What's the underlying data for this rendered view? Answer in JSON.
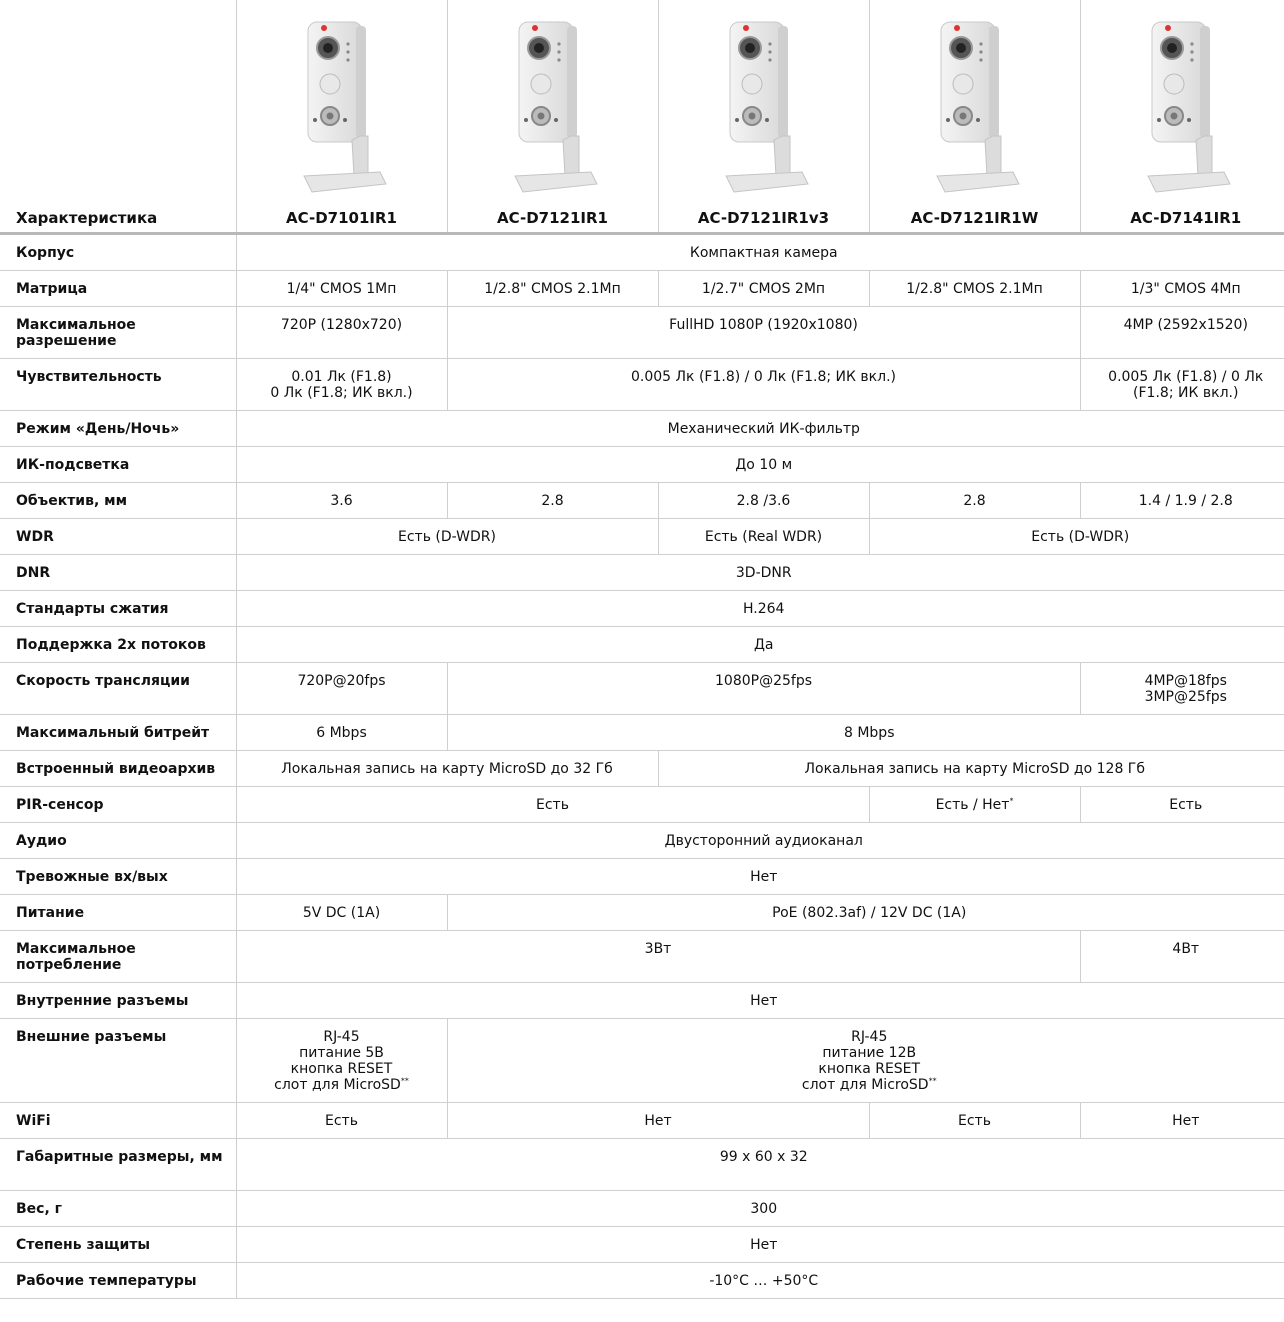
{
  "header": {
    "spec_label": "Характеристика",
    "models": [
      "AC-D7101IR1",
      "AC-D7121IR1",
      "AC-D7121IR1v3",
      "AC-D7121IR1W",
      "AC-D7141IR1"
    ],
    "camera_image_icon": "compact-cube-camera-photo"
  },
  "rows": [
    {
      "label": "Корпус",
      "cells": [
        {
          "text": "Компактная камера",
          "span": 5
        }
      ]
    },
    {
      "label": "Матрица",
      "cells": [
        {
          "text": "1/4\" CMOS 1Мп",
          "span": 1
        },
        {
          "text": "1/2.8\" CMOS 2.1Мп",
          "span": 1
        },
        {
          "text": "1/2.7\" CMOS 2Мп",
          "span": 1
        },
        {
          "text": "1/2.8\" CMOS 2.1Мп",
          "span": 1
        },
        {
          "text": "1/3\" CMOS 4Мп",
          "span": 1
        }
      ]
    },
    {
      "label": "Максимальное разрешение",
      "cells": [
        {
          "text": "720P (1280x720)",
          "span": 1
        },
        {
          "text": "FullHD 1080P (1920x1080)",
          "span": 3
        },
        {
          "text": "4MP (2592x1520)",
          "span": 1
        }
      ]
    },
    {
      "label": "Чувствительность",
      "cells": [
        {
          "text": "0.01 Лк (F1.8)\n0 Лк (F1.8; ИК вкл.)",
          "span": 1
        },
        {
          "text": "0.005 Лк (F1.8) / 0 Лк (F1.8; ИК вкл.)",
          "span": 3
        },
        {
          "text": "0.005 Лк (F1.8) / 0 Лк\n(F1.8; ИК вкл.)",
          "span": 1
        }
      ]
    },
    {
      "label": "Режим «День/Ночь»",
      "cells": [
        {
          "text": "Механический ИК-фильтр",
          "span": 5
        }
      ]
    },
    {
      "label": "ИК-подсветка",
      "cells": [
        {
          "text": "До 10 м",
          "span": 5
        }
      ]
    },
    {
      "label": "Объектив, мм",
      "cells": [
        {
          "text": "3.6",
          "span": 1
        },
        {
          "text": "2.8",
          "span": 1
        },
        {
          "text": "2.8 /3.6",
          "span": 1
        },
        {
          "text": "2.8",
          "span": 1
        },
        {
          "text": "1.4 / 1.9 / 2.8",
          "span": 1
        }
      ]
    },
    {
      "label": "WDR",
      "cells": [
        {
          "text": "Есть (D-WDR)",
          "span": 2
        },
        {
          "text": "Есть (Real WDR)",
          "span": 1
        },
        {
          "text": "Есть (D-WDR)",
          "span": 2
        }
      ]
    },
    {
      "label": "DNR",
      "cells": [
        {
          "text": "3D-DNR",
          "span": 5
        }
      ]
    },
    {
      "label": "Стандарты сжатия",
      "cells": [
        {
          "text": "H.264",
          "span": 5
        }
      ]
    },
    {
      "label": "Поддержка 2х потоков",
      "cells": [
        {
          "text": "Да",
          "span": 5
        }
      ]
    },
    {
      "label": "Скорость трансляции",
      "cells": [
        {
          "text": "720P@20fps",
          "span": 1
        },
        {
          "text": "1080P@25fps",
          "span": 3
        },
        {
          "text": "4MP@18fps\n3MP@25fps",
          "span": 1
        }
      ]
    },
    {
      "label": "Максимальный битрейт",
      "cells": [
        {
          "text": "6 Mbps",
          "span": 1
        },
        {
          "text": "8 Mbps",
          "span": 4
        }
      ]
    },
    {
      "label": "Встроенный видеоархив",
      "cells": [
        {
          "text": "Локальная запись на карту MicroSD до 32 Гб",
          "span": 2
        },
        {
          "text": "Локальная запись на карту MicroSD до 128 Гб",
          "span": 3
        }
      ]
    },
    {
      "label": "PIR-сенсор",
      "cells": [
        {
          "text": "Есть",
          "span": 3
        },
        {
          "text": "Есть / Нет",
          "sup": "*",
          "span": 1
        },
        {
          "text": "Есть",
          "span": 1
        }
      ]
    },
    {
      "label": "Аудио",
      "cells": [
        {
          "text": "Двусторонний аудиоканал",
          "span": 5
        }
      ]
    },
    {
      "label": "Тревожные вх/вых",
      "cells": [
        {
          "text": "Нет",
          "span": 5
        }
      ]
    },
    {
      "label": "Питание",
      "cells": [
        {
          "text": "5V DC (1A)",
          "span": 1
        },
        {
          "text": "PoE (802.3af) / 12V DC (1A)",
          "span": 4
        }
      ]
    },
    {
      "label": "Максимальное потребление",
      "cells": [
        {
          "text": "3Вт",
          "span": 4
        },
        {
          "text": "4Вт",
          "span": 1
        }
      ]
    },
    {
      "label": "Внутренние разъемы",
      "cells": [
        {
          "text": "Нет",
          "span": 5
        }
      ]
    },
    {
      "label": "Внешние разъемы",
      "cells": [
        {
          "text": "RJ-45\nпитание 5В\nкнопка RESET\nслот для MicroSD",
          "sup": "**",
          "span": 1
        },
        {
          "text": "RJ-45\nпитание 12В\nкнопка RESET\nслот для MicroSD",
          "sup": "**",
          "span": 4
        }
      ]
    },
    {
      "label": "WiFi",
      "cells": [
        {
          "text": "Есть",
          "span": 1
        },
        {
          "text": "Нет",
          "span": 2
        },
        {
          "text": "Есть",
          "span": 1
        },
        {
          "text": "Нет",
          "span": 1
        }
      ]
    },
    {
      "label": "Габаритные размеры, мм",
      "cells": [
        {
          "text": "99 x 60 x 32",
          "span": 5
        }
      ]
    },
    {
      "label": "Вес, г",
      "cells": [
        {
          "text": "300",
          "span": 5
        }
      ]
    },
    {
      "label": "Степень защиты",
      "cells": [
        {
          "text": "Нет",
          "span": 5
        }
      ]
    },
    {
      "label": "Рабочие температуры",
      "cells": [
        {
          "text": "-10°C … +50°C",
          "span": 5
        }
      ]
    }
  ]
}
